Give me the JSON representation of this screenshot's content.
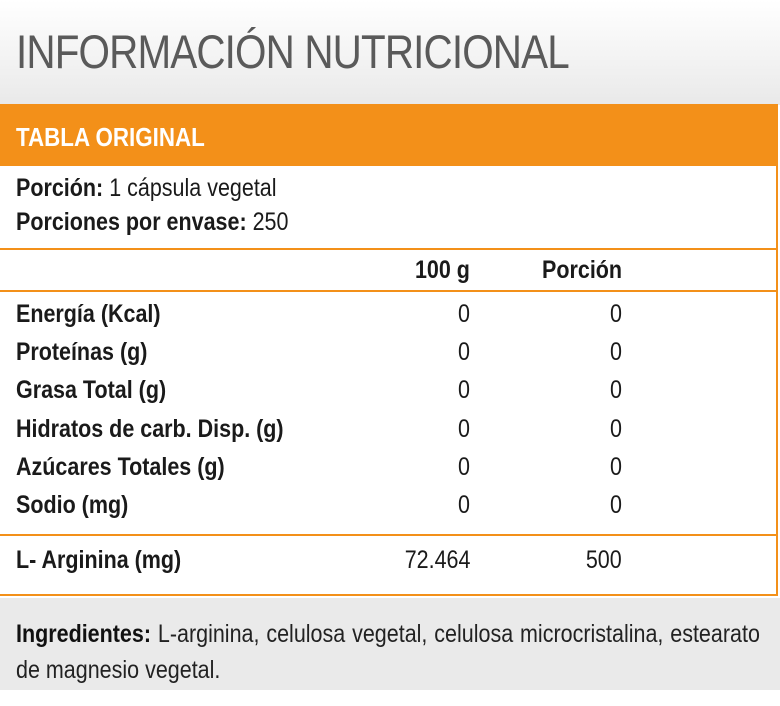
{
  "title": "INFORMACIÓN NUTRICIONAL",
  "table_header": "TABLA ORIGINAL",
  "serving": {
    "portion_label": "Porción:",
    "portion_value": "1 cápsula vegetal",
    "per_container_label": "Porciones por envase:",
    "per_container_value": "250"
  },
  "columns": {
    "per100": "100 g",
    "portion": "Porción"
  },
  "rows": [
    {
      "label": "Energía (Kcal)",
      "per100": "0",
      "portion": "0"
    },
    {
      "label": "Proteínas (g)",
      "per100": "0",
      "portion": "0"
    },
    {
      "label": "Grasa Total (g)",
      "per100": "0",
      "portion": "0"
    },
    {
      "label": "Hidratos de carb. Disp. (g)",
      "per100": "0",
      "portion": "0"
    },
    {
      "label": "Azúcares Totales (g)",
      "per100": "0",
      "portion": "0"
    },
    {
      "label": "Sodio (mg)",
      "per100": "0",
      "portion": "0"
    }
  ],
  "active": {
    "label": "L- Arginina (mg)",
    "per100": "72.464",
    "portion": "500"
  },
  "ingredients": {
    "label": "Ingredientes:",
    "text": " L-arginina, celulosa vegetal, celulosa microcristalina, estearato de magnesio vegetal."
  },
  "colors": {
    "accent": "#f39019",
    "title": "#5a5a5a",
    "footer_bg": "#eaeaea"
  }
}
